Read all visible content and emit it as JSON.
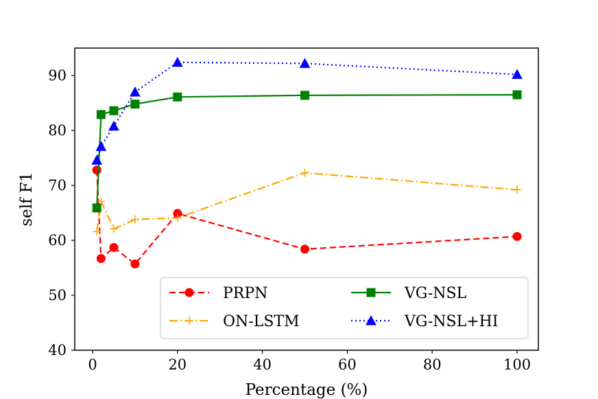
{
  "chart_data": {
    "type": "line",
    "title": "",
    "xlabel": "Percentage (%)",
    "ylabel": "self F1",
    "xlim": [
      -4.2,
      105
    ],
    "ylim": [
      40,
      95
    ],
    "xticks": [
      0,
      20,
      40,
      60,
      80,
      100
    ],
    "yticks": [
      40,
      50,
      60,
      70,
      80,
      90
    ],
    "x": [
      1,
      2,
      5,
      10,
      20,
      50,
      100
    ],
    "grid": false,
    "legend_position": "lower-right",
    "series": [
      {
        "name": "PRPN",
        "values": [
          72.8,
          56.7,
          58.7,
          55.7,
          64.9,
          58.4,
          60.7
        ],
        "color": "#ff0000",
        "linestyle": "dashed",
        "marker": "circle"
      },
      {
        "name": "ON-LSTM",
        "values": [
          61.6,
          67.1,
          62.1,
          63.8,
          64.1,
          72.3,
          69.2
        ],
        "color": "#ffa500",
        "linestyle": "dashdot",
        "marker": "plus"
      },
      {
        "name": "VG-NSL",
        "values": [
          65.9,
          82.9,
          83.6,
          84.8,
          86.1,
          86.4,
          86.5
        ],
        "color": "#008000",
        "linestyle": "solid",
        "marker": "square"
      },
      {
        "name": "VG-NSL+HI",
        "values": [
          74.6,
          77.1,
          80.8,
          87.0,
          92.4,
          92.2,
          90.2
        ],
        "color": "#0000ff",
        "linestyle": "dotted",
        "marker": "triangle"
      }
    ]
  }
}
